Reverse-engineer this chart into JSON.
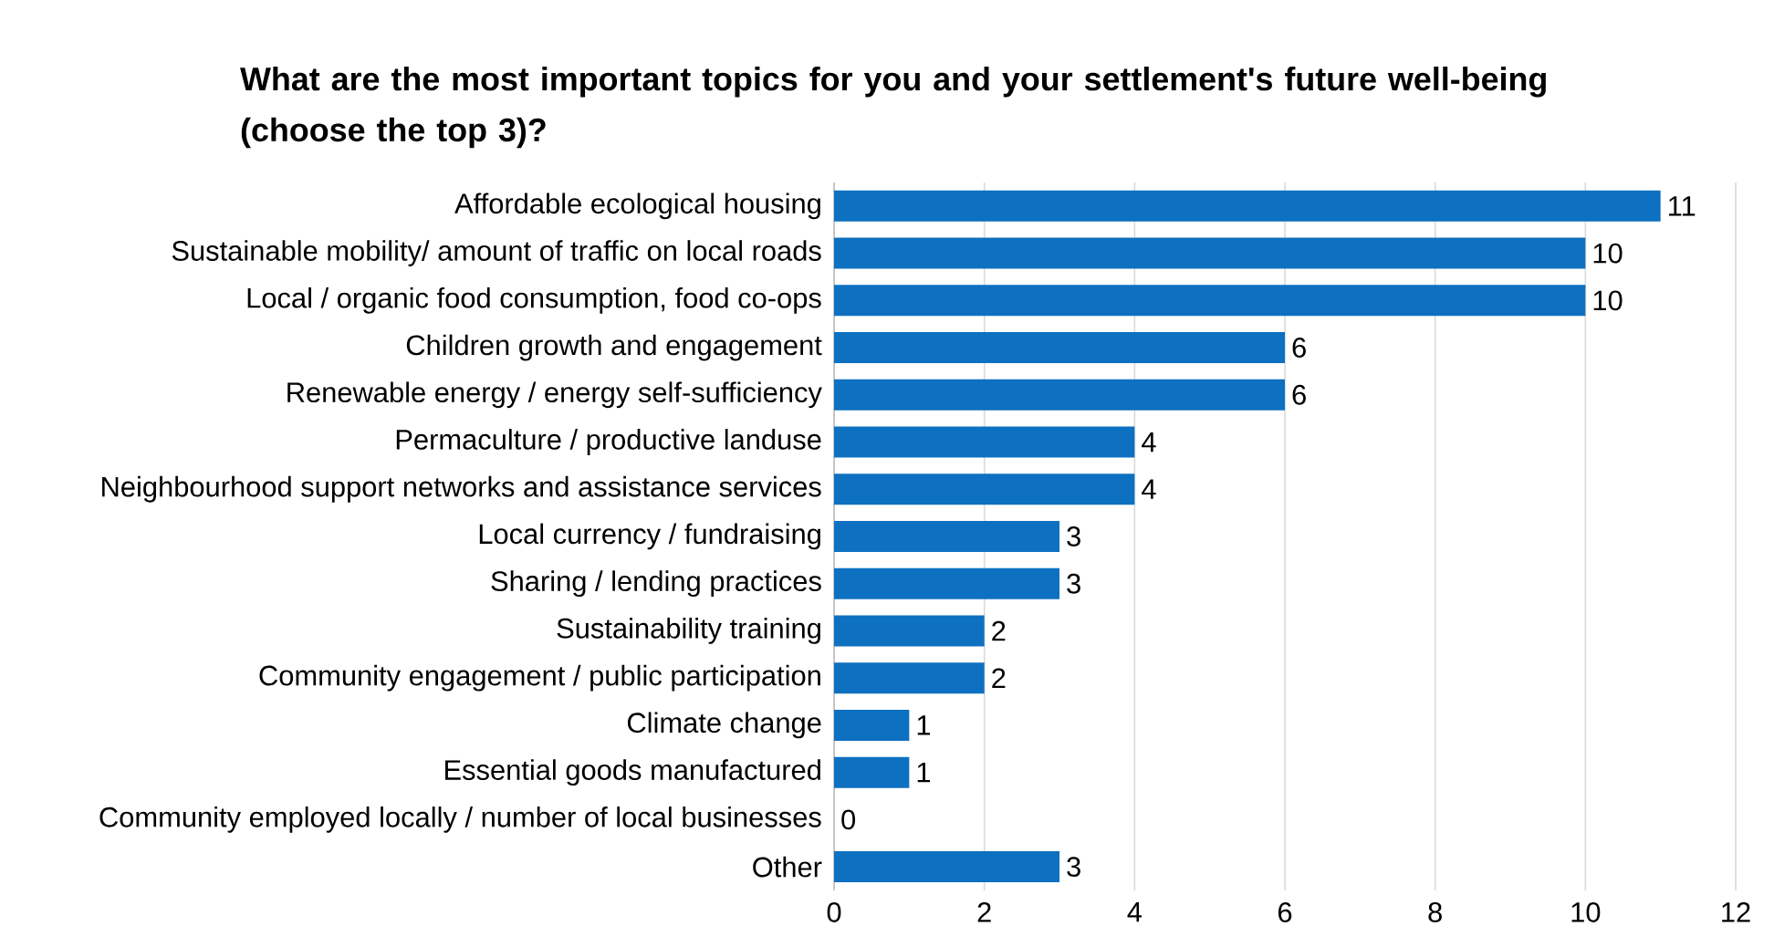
{
  "chart_data": {
    "type": "bar",
    "orientation": "horizontal",
    "title": "What are the most important topics for you and your settlement's future well-being (choose the top 3)?",
    "categories": [
      "Affordable ecological housing",
      "Sustainable mobility/ amount of traffic on local roads",
      "Local / organic food consumption, food co-ops",
      "Children growth and engagement",
      "Renewable energy / energy self-sufficiency",
      "Permaculture / productive landuse",
      "Neighbourhood support networks and assistance services",
      "Local currency / fundraising",
      "Sharing / lending practices",
      "Sustainability training",
      "Community engagement / public participation",
      "Climate change",
      "Essential goods manufactured",
      "Community employed locally / number of local businesses",
      "Other"
    ],
    "values": [
      11,
      10,
      10,
      6,
      6,
      4,
      4,
      3,
      3,
      2,
      2,
      1,
      1,
      0,
      3
    ],
    "color": "#0e70c0",
    "xlim": [
      0,
      12
    ],
    "xticks": [
      0,
      2,
      4,
      6,
      8,
      10,
      12
    ],
    "grid": "x",
    "data_labels": true
  }
}
